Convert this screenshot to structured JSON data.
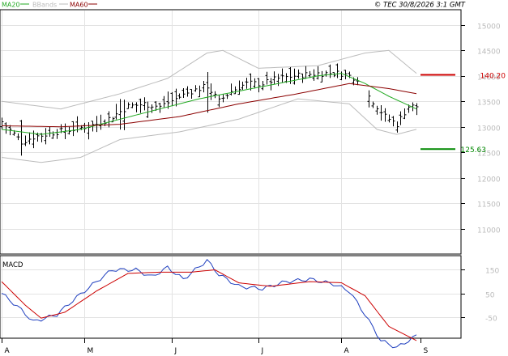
{
  "header": {
    "legend": [
      {
        "label": "MA20",
        "color": "#22aa22"
      },
      {
        "label": "BBands",
        "color": "#bbbbbb"
      },
      {
        "label": "MA60",
        "color": "#8b0000"
      }
    ],
    "copyright": "© TEC 30/8/2026 3:1 GMT"
  },
  "price_panel": {
    "y_ticks": [
      "15000",
      "14500",
      "14000",
      "13500",
      "13000",
      "12500",
      "12000",
      "11500",
      "11000"
    ],
    "resistance": {
      "label": "140.20",
      "value": 14020,
      "color": "#cc0000"
    },
    "support": {
      "label": "125.63",
      "value": 12563,
      "color": "#008800"
    }
  },
  "macd_panel": {
    "title": "MACD",
    "y_ticks": [
      "150",
      "50",
      "-50"
    ]
  },
  "x_axis": {
    "months": [
      "A",
      "M",
      "J",
      "J",
      "A",
      "S"
    ]
  },
  "chart_data": {
    "type": "line",
    "subtype": "ohlc-bar",
    "price": {
      "ylim": [
        10500,
        15300
      ],
      "anchors": [
        {
          "i": 0,
          "v": 13100
        },
        {
          "i": 5,
          "v": 12700
        },
        {
          "i": 8,
          "v": 12800
        },
        {
          "i": 14,
          "v": 12900
        },
        {
          "i": 18,
          "v": 12950
        },
        {
          "i": 24,
          "v": 13050
        },
        {
          "i": 28,
          "v": 13200
        },
        {
          "i": 32,
          "v": 13400
        },
        {
          "i": 36,
          "v": 13450
        },
        {
          "i": 40,
          "v": 13400
        },
        {
          "i": 44,
          "v": 13550
        },
        {
          "i": 48,
          "v": 13700
        },
        {
          "i": 52,
          "v": 13800
        },
        {
          "i": 55,
          "v": 13500
        },
        {
          "i": 58,
          "v": 13700
        },
        {
          "i": 62,
          "v": 13850
        },
        {
          "i": 66,
          "v": 13850
        },
        {
          "i": 70,
          "v": 13950
        },
        {
          "i": 74,
          "v": 14000
        },
        {
          "i": 80,
          "v": 14050
        },
        {
          "i": 86,
          "v": 14050
        },
        {
          "i": 90,
          "v": 13950
        },
        {
          "i": 93,
          "v": 13600
        },
        {
          "i": 97,
          "v": 13200
        },
        {
          "i": 100,
          "v": 13050
        },
        {
          "i": 103,
          "v": 13400
        },
        {
          "i": 105,
          "v": 13400
        }
      ],
      "series": [
        {
          "name": "MA20",
          "color": "#22aa22",
          "values": [
            {
              "i": 0,
              "v": 12950
            },
            {
              "i": 10,
              "v": 12850
            },
            {
              "i": 20,
              "v": 12950
            },
            {
              "i": 30,
              "v": 13150
            },
            {
              "i": 40,
              "v": 13350
            },
            {
              "i": 50,
              "v": 13550
            },
            {
              "i": 60,
              "v": 13700
            },
            {
              "i": 70,
              "v": 13850
            },
            {
              "i": 80,
              "v": 14000
            },
            {
              "i": 86,
              "v": 14050
            },
            {
              "i": 92,
              "v": 13850
            },
            {
              "i": 98,
              "v": 13600
            },
            {
              "i": 105,
              "v": 13350
            }
          ]
        },
        {
          "name": "MA60",
          "color": "#8b0000",
          "values": [
            {
              "i": 0,
              "v": 13020
            },
            {
              "i": 15,
              "v": 13000
            },
            {
              "i": 30,
              "v": 13050
            },
            {
              "i": 45,
              "v": 13200
            },
            {
              "i": 60,
              "v": 13450
            },
            {
              "i": 75,
              "v": 13650
            },
            {
              "i": 88,
              "v": 13850
            },
            {
              "i": 98,
              "v": 13750
            },
            {
              "i": 105,
              "v": 13650
            }
          ]
        },
        {
          "name": "BBands upper",
          "color": "#bbbbbb",
          "values": [
            {
              "i": 0,
              "v": 13500
            },
            {
              "i": 15,
              "v": 13350
            },
            {
              "i": 30,
              "v": 13650
            },
            {
              "i": 42,
              "v": 13950
            },
            {
              "i": 52,
              "v": 14450
            },
            {
              "i": 56,
              "v": 14500
            },
            {
              "i": 65,
              "v": 14150
            },
            {
              "i": 80,
              "v": 14200
            },
            {
              "i": 92,
              "v": 14450
            },
            {
              "i": 98,
              "v": 14500
            },
            {
              "i": 105,
              "v": 14050
            }
          ]
        },
        {
          "name": "BBands lower",
          "color": "#bbbbbb",
          "values": [
            {
              "i": 0,
              "v": 12400
            },
            {
              "i": 10,
              "v": 12300
            },
            {
              "i": 20,
              "v": 12400
            },
            {
              "i": 30,
              "v": 12750
            },
            {
              "i": 45,
              "v": 12900
            },
            {
              "i": 60,
              "v": 13150
            },
            {
              "i": 75,
              "v": 13550
            },
            {
              "i": 88,
              "v": 13450
            },
            {
              "i": 95,
              "v": 12950
            },
            {
              "i": 100,
              "v": 12850
            },
            {
              "i": 105,
              "v": 12950
            }
          ]
        }
      ]
    },
    "macd": {
      "ylim": [
        -140,
        210
      ],
      "series": [
        {
          "name": "MACD",
          "color": "#1f3fbf",
          "values": [
            {
              "i": 0,
              "v": 50
            },
            {
              "i": 5,
              "v": -20
            },
            {
              "i": 8,
              "v": -70
            },
            {
              "i": 14,
              "v": -40
            },
            {
              "i": 18,
              "v": 20
            },
            {
              "i": 24,
              "v": 100
            },
            {
              "i": 28,
              "v": 150
            },
            {
              "i": 34,
              "v": 150
            },
            {
              "i": 38,
              "v": 120
            },
            {
              "i": 42,
              "v": 160
            },
            {
              "i": 46,
              "v": 110
            },
            {
              "i": 52,
              "v": 190
            },
            {
              "i": 55,
              "v": 130
            },
            {
              "i": 60,
              "v": 80
            },
            {
              "i": 66,
              "v": 70
            },
            {
              "i": 72,
              "v": 100
            },
            {
              "i": 78,
              "v": 110
            },
            {
              "i": 84,
              "v": 90
            },
            {
              "i": 88,
              "v": 60
            },
            {
              "i": 92,
              "v": -40
            },
            {
              "i": 96,
              "v": -150
            },
            {
              "i": 100,
              "v": -180
            },
            {
              "i": 105,
              "v": -130
            }
          ]
        },
        {
          "name": "Signal",
          "color": "#cc0000",
          "values": [
            {
              "i": 0,
              "v": 100
            },
            {
              "i": 6,
              "v": 0
            },
            {
              "i": 10,
              "v": -55
            },
            {
              "i": 16,
              "v": -30
            },
            {
              "i": 24,
              "v": 60
            },
            {
              "i": 32,
              "v": 135
            },
            {
              "i": 40,
              "v": 140
            },
            {
              "i": 48,
              "v": 140
            },
            {
              "i": 54,
              "v": 150
            },
            {
              "i": 60,
              "v": 95
            },
            {
              "i": 68,
              "v": 80
            },
            {
              "i": 78,
              "v": 100
            },
            {
              "i": 86,
              "v": 95
            },
            {
              "i": 92,
              "v": 40
            },
            {
              "i": 98,
              "v": -90
            },
            {
              "i": 105,
              "v": -150
            }
          ]
        }
      ]
    },
    "x_index_range": [
      0,
      105
    ],
    "grid": true
  }
}
